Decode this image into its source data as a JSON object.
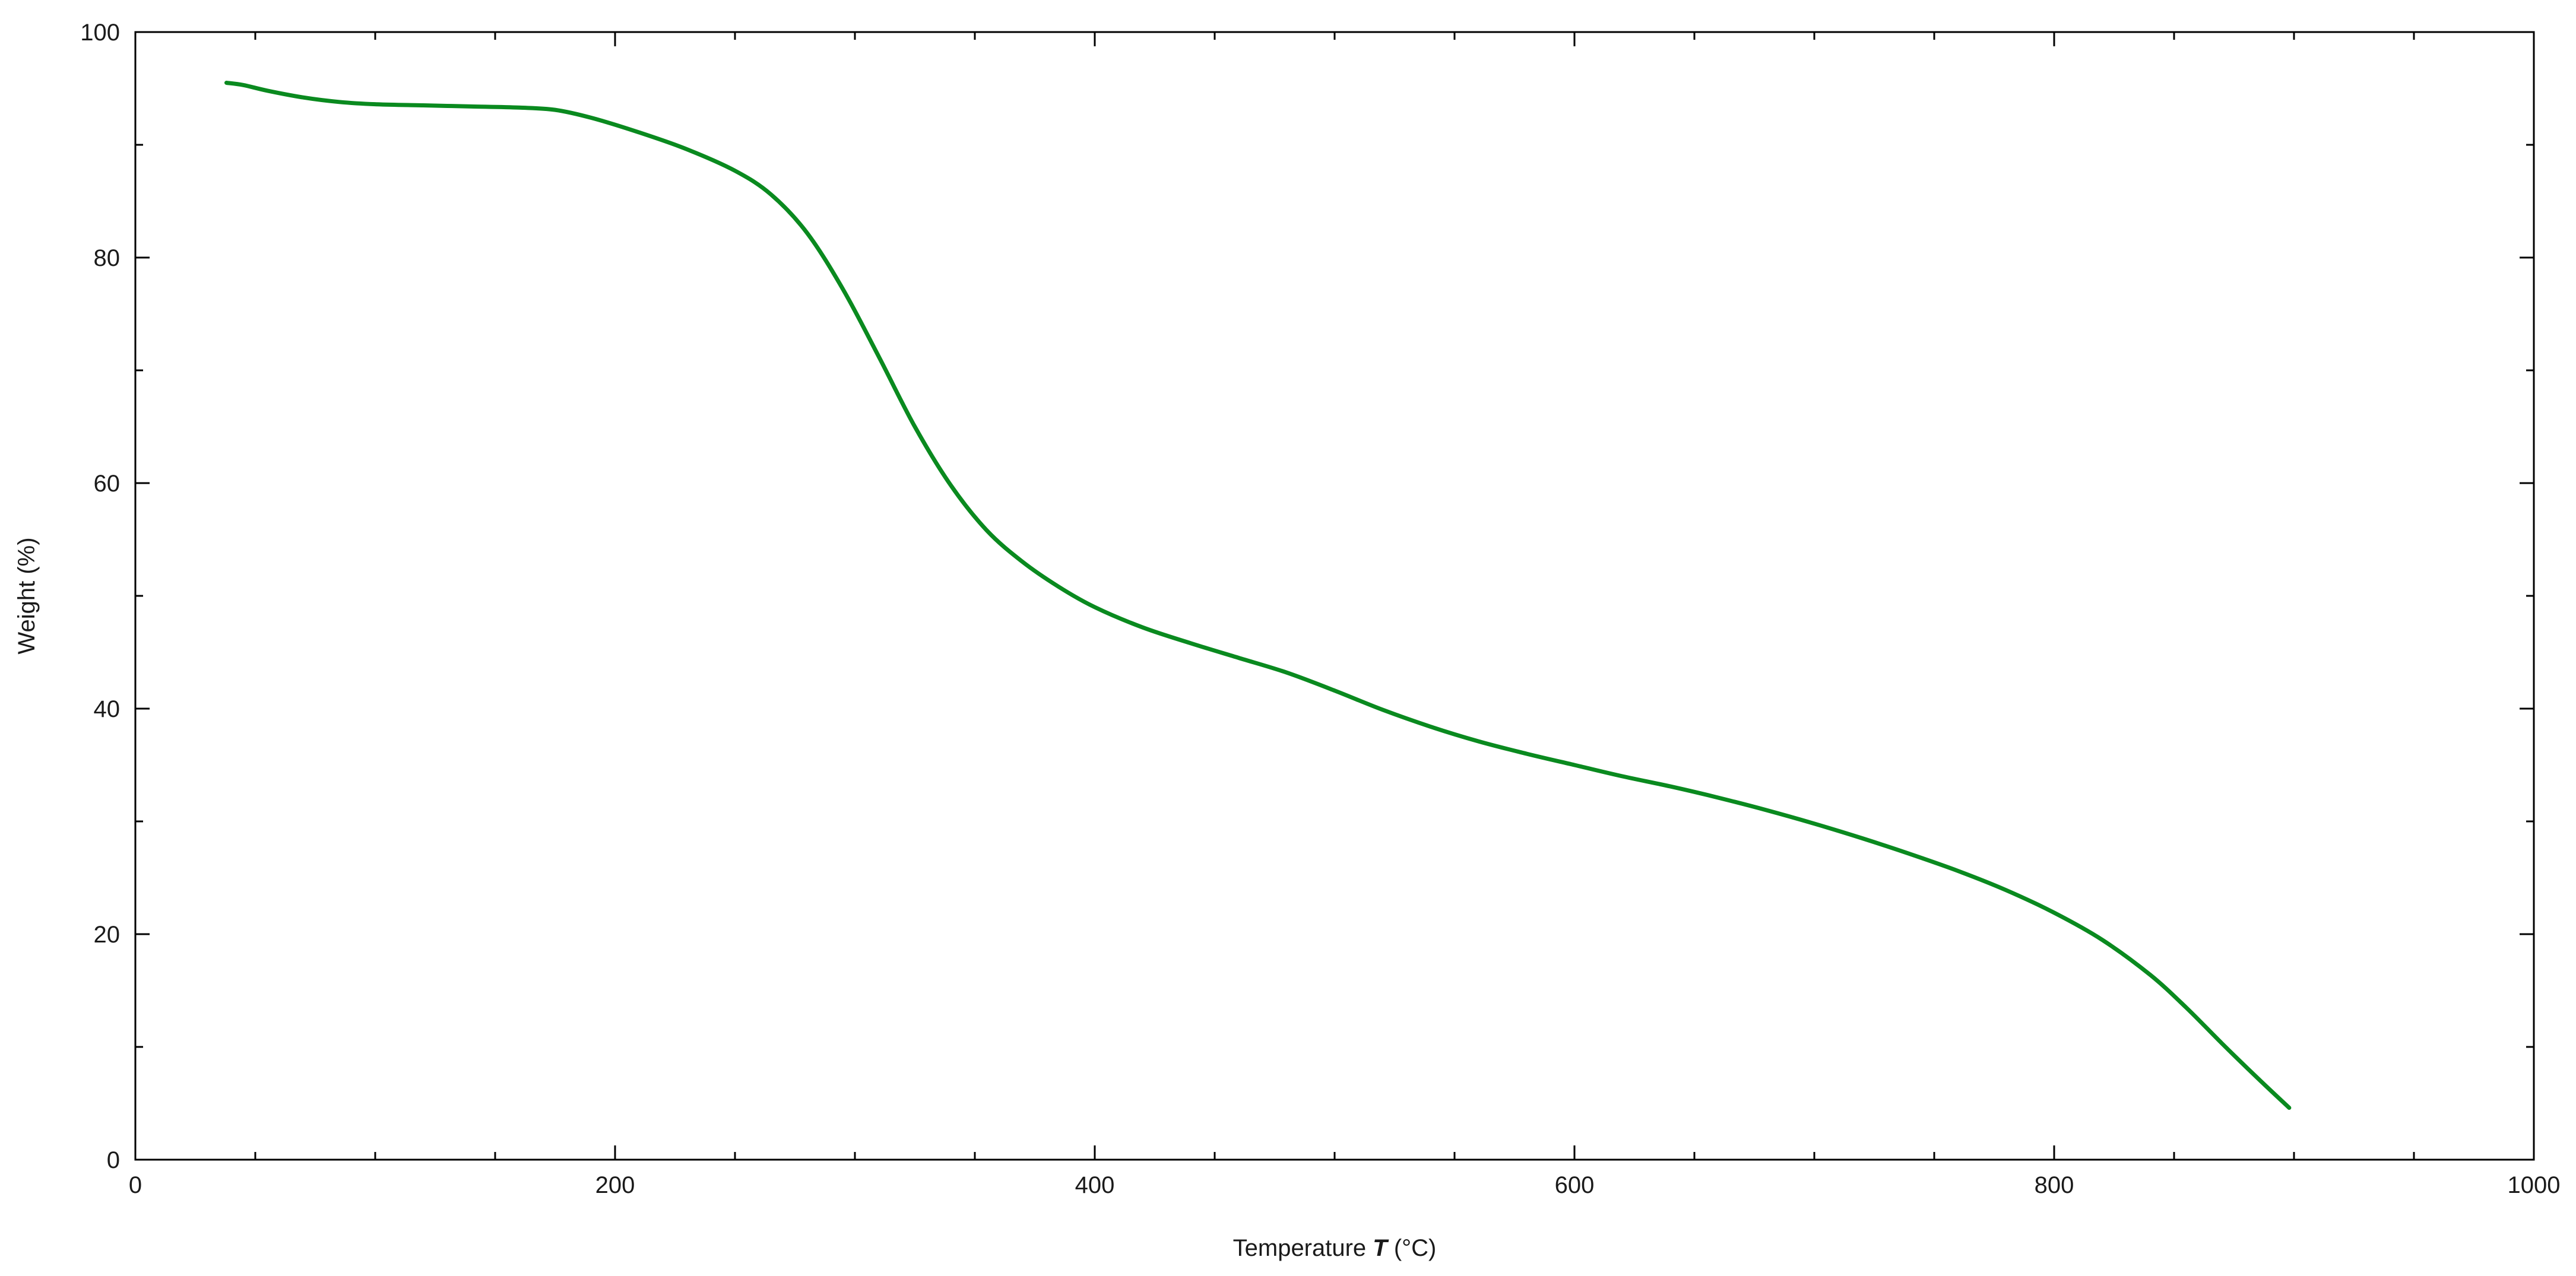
{
  "chart_data": {
    "type": "line",
    "title": "",
    "xlabel": {
      "prefix": "Temperature ",
      "symbol": "T",
      "suffix": " (°C)"
    },
    "ylabel": "Weight (%)",
    "xlim": [
      0,
      1000
    ],
    "ylim": [
      0,
      100
    ],
    "x_major_ticks": [
      0,
      200,
      400,
      600,
      800,
      1000
    ],
    "x_minor_ticks": [
      50,
      100,
      150,
      250,
      300,
      350,
      450,
      500,
      550,
      650,
      700,
      750,
      850,
      900,
      950
    ],
    "y_major_ticks": [
      0,
      20,
      40,
      60,
      80,
      100
    ],
    "y_minor_ticks": [
      10,
      30,
      50,
      70,
      90
    ],
    "x_tick_labels": [
      "0",
      "200",
      "400",
      "600",
      "800",
      "1000"
    ],
    "y_tick_labels": [
      "0",
      "20",
      "40",
      "60",
      "80",
      "100"
    ],
    "grid": false,
    "legend": false,
    "series": [
      {
        "color": "#0a8a1f",
        "x": [
          38,
          45,
          55,
          70,
          85,
          100,
          120,
          140,
          160,
          175,
          190,
          210,
          230,
          250,
          265,
          280,
          295,
          310,
          325,
          340,
          355,
          370,
          385,
          400,
          420,
          440,
          460,
          480,
          500,
          520,
          540,
          560,
          580,
          600,
          620,
          640,
          660,
          680,
          700,
          720,
          740,
          760,
          780,
          800,
          820,
          840,
          855,
          870,
          885,
          898
        ],
        "y": [
          95.5,
          95.3,
          94.8,
          94.2,
          93.8,
          93.6,
          93.5,
          93.4,
          93.3,
          93.1,
          92.4,
          91.1,
          89.6,
          87.7,
          85.6,
          82.2,
          77.2,
          71.2,
          65.0,
          59.8,
          55.8,
          53.0,
          50.8,
          49.0,
          47.2,
          45.8,
          44.5,
          43.2,
          41.6,
          39.9,
          38.4,
          37.1,
          36.0,
          35.0,
          34.0,
          33.1,
          32.1,
          31.0,
          29.8,
          28.5,
          27.1,
          25.6,
          23.9,
          21.9,
          19.5,
          16.4,
          13.5,
          10.3,
          7.2,
          4.6
        ]
      }
    ]
  }
}
